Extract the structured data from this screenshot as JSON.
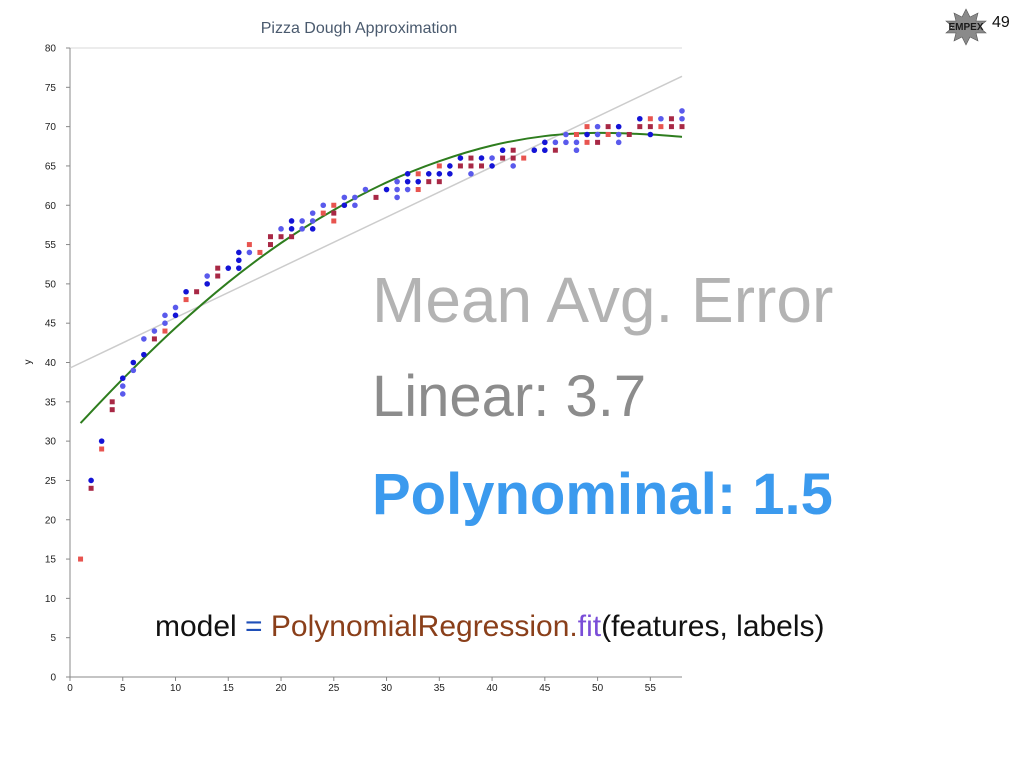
{
  "slide": {
    "mae_heading": "Mean Avg. Error",
    "linear_text": "Linear: 3.7",
    "poly_text": "Polynominal: 1.5",
    "code": {
      "var": "model",
      "eq": " = ",
      "class_name": "PolynomialRegression",
      "dot": ".",
      "method": "fit",
      "args": "(features, labels)"
    },
    "logo_text": "EMPEX",
    "page_number": "49"
  },
  "colors": {
    "red_series": "#e8544f",
    "dark_red_series": "#a82845",
    "blue_series": "#1414d6",
    "light_blue_series": "#5a5aec",
    "poly_curve": "#2e7d1e",
    "linear_line": "#cccccc",
    "poly_text": "#3b9aee"
  },
  "chart_data": {
    "type": "scatter",
    "title": "Pizza Dough Approximation",
    "xlabel": "",
    "ylabel": "y",
    "xlim": [
      0,
      58
    ],
    "ylim": [
      0,
      80
    ],
    "x_ticks": [
      0,
      5,
      10,
      15,
      20,
      25,
      30,
      35,
      40,
      45,
      50,
      55
    ],
    "y_ticks": [
      0,
      5,
      10,
      15,
      20,
      25,
      30,
      35,
      40,
      45,
      50,
      55,
      60,
      65,
      70,
      75,
      80
    ],
    "grid": "horizontal line at top only",
    "scatter_points": [
      {
        "x": 1,
        "y": 15,
        "shape": "square",
        "color": "#e8544f"
      },
      {
        "x": 2,
        "y": 24,
        "shape": "square",
        "color": "#a82845"
      },
      {
        "x": 2,
        "y": 25,
        "shape": "circle",
        "color": "#1414d6"
      },
      {
        "x": 3,
        "y": 29,
        "shape": "square",
        "color": "#e8544f"
      },
      {
        "x": 3,
        "y": 30,
        "shape": "circle",
        "color": "#1414d6"
      },
      {
        "x": 4,
        "y": 34,
        "shape": "square",
        "color": "#a82845"
      },
      {
        "x": 4,
        "y": 35,
        "shape": "square",
        "color": "#a82845"
      },
      {
        "x": 5,
        "y": 36,
        "shape": "circle",
        "color": "#5a5aec"
      },
      {
        "x": 5,
        "y": 37,
        "shape": "circle",
        "color": "#5a5aec"
      },
      {
        "x": 5,
        "y": 38,
        "shape": "circle",
        "color": "#1414d6"
      },
      {
        "x": 6,
        "y": 39,
        "shape": "circle",
        "color": "#5a5aec"
      },
      {
        "x": 6,
        "y": 40,
        "shape": "circle",
        "color": "#1414d6"
      },
      {
        "x": 7,
        "y": 41,
        "shape": "circle",
        "color": "#1414d6"
      },
      {
        "x": 7,
        "y": 43,
        "shape": "circle",
        "color": "#5a5aec"
      },
      {
        "x": 8,
        "y": 43,
        "shape": "square",
        "color": "#a82845"
      },
      {
        "x": 8,
        "y": 44,
        "shape": "circle",
        "color": "#5a5aec"
      },
      {
        "x": 9,
        "y": 44,
        "shape": "square",
        "color": "#e8544f"
      },
      {
        "x": 9,
        "y": 45,
        "shape": "circle",
        "color": "#5a5aec"
      },
      {
        "x": 9,
        "y": 46,
        "shape": "circle",
        "color": "#5a5aec"
      },
      {
        "x": 10,
        "y": 46,
        "shape": "circle",
        "color": "#1414d6"
      },
      {
        "x": 10,
        "y": 47,
        "shape": "circle",
        "color": "#5a5aec"
      },
      {
        "x": 11,
        "y": 48,
        "shape": "square",
        "color": "#e8544f"
      },
      {
        "x": 11,
        "y": 49,
        "shape": "circle",
        "color": "#1414d6"
      },
      {
        "x": 12,
        "y": 49,
        "shape": "square",
        "color": "#a82845"
      },
      {
        "x": 13,
        "y": 50,
        "shape": "circle",
        "color": "#1414d6"
      },
      {
        "x": 13,
        "y": 51,
        "shape": "circle",
        "color": "#5a5aec"
      },
      {
        "x": 14,
        "y": 51,
        "shape": "square",
        "color": "#a82845"
      },
      {
        "x": 14,
        "y": 52,
        "shape": "square",
        "color": "#a82845"
      },
      {
        "x": 15,
        "y": 52,
        "shape": "circle",
        "color": "#1414d6"
      },
      {
        "x": 16,
        "y": 52,
        "shape": "circle",
        "color": "#1414d6"
      },
      {
        "x": 16,
        "y": 53,
        "shape": "circle",
        "color": "#1414d6"
      },
      {
        "x": 16,
        "y": 54,
        "shape": "circle",
        "color": "#1414d6"
      },
      {
        "x": 17,
        "y": 54,
        "shape": "circle",
        "color": "#5a5aec"
      },
      {
        "x": 17,
        "y": 55,
        "shape": "square",
        "color": "#e8544f"
      },
      {
        "x": 18,
        "y": 54,
        "shape": "square",
        "color": "#e8544f"
      },
      {
        "x": 19,
        "y": 55,
        "shape": "square",
        "color": "#a82845"
      },
      {
        "x": 19,
        "y": 56,
        "shape": "square",
        "color": "#a82845"
      },
      {
        "x": 20,
        "y": 56,
        "shape": "square",
        "color": "#a82845"
      },
      {
        "x": 20,
        "y": 57,
        "shape": "circle",
        "color": "#5a5aec"
      },
      {
        "x": 21,
        "y": 56,
        "shape": "square",
        "color": "#a82845"
      },
      {
        "x": 21,
        "y": 57,
        "shape": "circle",
        "color": "#1414d6"
      },
      {
        "x": 21,
        "y": 58,
        "shape": "circle",
        "color": "#1414d6"
      },
      {
        "x": 22,
        "y": 57,
        "shape": "circle",
        "color": "#5a5aec"
      },
      {
        "x": 22,
        "y": 58,
        "shape": "circle",
        "color": "#5a5aec"
      },
      {
        "x": 23,
        "y": 57,
        "shape": "circle",
        "color": "#1414d6"
      },
      {
        "x": 23,
        "y": 58,
        "shape": "circle",
        "color": "#5a5aec"
      },
      {
        "x": 23,
        "y": 59,
        "shape": "circle",
        "color": "#5a5aec"
      },
      {
        "x": 24,
        "y": 59,
        "shape": "square",
        "color": "#e8544f"
      },
      {
        "x": 24,
        "y": 60,
        "shape": "circle",
        "color": "#5a5aec"
      },
      {
        "x": 25,
        "y": 58,
        "shape": "square",
        "color": "#e8544f"
      },
      {
        "x": 25,
        "y": 59,
        "shape": "square",
        "color": "#a82845"
      },
      {
        "x": 25,
        "y": 60,
        "shape": "square",
        "color": "#e8544f"
      },
      {
        "x": 26,
        "y": 60,
        "shape": "circle",
        "color": "#1414d6"
      },
      {
        "x": 26,
        "y": 61,
        "shape": "circle",
        "color": "#5a5aec"
      },
      {
        "x": 27,
        "y": 60,
        "shape": "circle",
        "color": "#5a5aec"
      },
      {
        "x": 27,
        "y": 61,
        "shape": "circle",
        "color": "#5a5aec"
      },
      {
        "x": 28,
        "y": 62,
        "shape": "circle",
        "color": "#5a5aec"
      },
      {
        "x": 29,
        "y": 61,
        "shape": "square",
        "color": "#a82845"
      },
      {
        "x": 30,
        "y": 62,
        "shape": "circle",
        "color": "#1414d6"
      },
      {
        "x": 31,
        "y": 61,
        "shape": "circle",
        "color": "#5a5aec"
      },
      {
        "x": 31,
        "y": 62,
        "shape": "circle",
        "color": "#5a5aec"
      },
      {
        "x": 31,
        "y": 63,
        "shape": "circle",
        "color": "#5a5aec"
      },
      {
        "x": 32,
        "y": 62,
        "shape": "circle",
        "color": "#5a5aec"
      },
      {
        "x": 32,
        "y": 63,
        "shape": "circle",
        "color": "#1414d6"
      },
      {
        "x": 32,
        "y": 64,
        "shape": "circle",
        "color": "#1414d6"
      },
      {
        "x": 33,
        "y": 62,
        "shape": "square",
        "color": "#e8544f"
      },
      {
        "x": 33,
        "y": 63,
        "shape": "circle",
        "color": "#1414d6"
      },
      {
        "x": 33,
        "y": 64,
        "shape": "square",
        "color": "#e8544f"
      },
      {
        "x": 34,
        "y": 63,
        "shape": "square",
        "color": "#a82845"
      },
      {
        "x": 34,
        "y": 64,
        "shape": "circle",
        "color": "#1414d6"
      },
      {
        "x": 35,
        "y": 63,
        "shape": "square",
        "color": "#a82845"
      },
      {
        "x": 35,
        "y": 64,
        "shape": "circle",
        "color": "#1414d6"
      },
      {
        "x": 35,
        "y": 65,
        "shape": "square",
        "color": "#e8544f"
      },
      {
        "x": 36,
        "y": 64,
        "shape": "circle",
        "color": "#1414d6"
      },
      {
        "x": 36,
        "y": 65,
        "shape": "circle",
        "color": "#1414d6"
      },
      {
        "x": 37,
        "y": 65,
        "shape": "square",
        "color": "#a82845"
      },
      {
        "x": 37,
        "y": 66,
        "shape": "circle",
        "color": "#1414d6"
      },
      {
        "x": 38,
        "y": 64,
        "shape": "circle",
        "color": "#5a5aec"
      },
      {
        "x": 38,
        "y": 65,
        "shape": "square",
        "color": "#a82845"
      },
      {
        "x": 38,
        "y": 66,
        "shape": "square",
        "color": "#a82845"
      },
      {
        "x": 39,
        "y": 65,
        "shape": "square",
        "color": "#a82845"
      },
      {
        "x": 39,
        "y": 66,
        "shape": "circle",
        "color": "#1414d6"
      },
      {
        "x": 40,
        "y": 65,
        "shape": "circle",
        "color": "#1414d6"
      },
      {
        "x": 40,
        "y": 66,
        "shape": "circle",
        "color": "#5a5aec"
      },
      {
        "x": 41,
        "y": 66,
        "shape": "square",
        "color": "#a82845"
      },
      {
        "x": 41,
        "y": 67,
        "shape": "circle",
        "color": "#1414d6"
      },
      {
        "x": 42,
        "y": 65,
        "shape": "circle",
        "color": "#5a5aec"
      },
      {
        "x": 42,
        "y": 66,
        "shape": "square",
        "color": "#a82845"
      },
      {
        "x": 42,
        "y": 67,
        "shape": "square",
        "color": "#a82845"
      },
      {
        "x": 43,
        "y": 66,
        "shape": "square",
        "color": "#e8544f"
      },
      {
        "x": 44,
        "y": 67,
        "shape": "circle",
        "color": "#1414d6"
      },
      {
        "x": 45,
        "y": 67,
        "shape": "circle",
        "color": "#1414d6"
      },
      {
        "x": 45,
        "y": 68,
        "shape": "circle",
        "color": "#1414d6"
      },
      {
        "x": 46,
        "y": 67,
        "shape": "square",
        "color": "#a82845"
      },
      {
        "x": 46,
        "y": 68,
        "shape": "circle",
        "color": "#5a5aec"
      },
      {
        "x": 47,
        "y": 68,
        "shape": "circle",
        "color": "#5a5aec"
      },
      {
        "x": 47,
        "y": 69,
        "shape": "circle",
        "color": "#5a5aec"
      },
      {
        "x": 48,
        "y": 67,
        "shape": "circle",
        "color": "#5a5aec"
      },
      {
        "x": 48,
        "y": 68,
        "shape": "circle",
        "color": "#5a5aec"
      },
      {
        "x": 48,
        "y": 69,
        "shape": "square",
        "color": "#e8544f"
      },
      {
        "x": 49,
        "y": 68,
        "shape": "square",
        "color": "#e8544f"
      },
      {
        "x": 49,
        "y": 69,
        "shape": "circle",
        "color": "#1414d6"
      },
      {
        "x": 49,
        "y": 70,
        "shape": "square",
        "color": "#e8544f"
      },
      {
        "x": 50,
        "y": 68,
        "shape": "square",
        "color": "#a82845"
      },
      {
        "x": 50,
        "y": 69,
        "shape": "circle",
        "color": "#5a5aec"
      },
      {
        "x": 50,
        "y": 70,
        "shape": "circle",
        "color": "#5a5aec"
      },
      {
        "x": 51,
        "y": 69,
        "shape": "square",
        "color": "#e8544f"
      },
      {
        "x": 51,
        "y": 70,
        "shape": "square",
        "color": "#a82845"
      },
      {
        "x": 52,
        "y": 68,
        "shape": "circle",
        "color": "#5a5aec"
      },
      {
        "x": 52,
        "y": 69,
        "shape": "circle",
        "color": "#5a5aec"
      },
      {
        "x": 52,
        "y": 70,
        "shape": "circle",
        "color": "#1414d6"
      },
      {
        "x": 53,
        "y": 69,
        "shape": "square",
        "color": "#a82845"
      },
      {
        "x": 54,
        "y": 70,
        "shape": "square",
        "color": "#a82845"
      },
      {
        "x": 54,
        "y": 71,
        "shape": "circle",
        "color": "#1414d6"
      },
      {
        "x": 55,
        "y": 69,
        "shape": "circle",
        "color": "#1414d6"
      },
      {
        "x": 55,
        "y": 70,
        "shape": "square",
        "color": "#a82845"
      },
      {
        "x": 55,
        "y": 71,
        "shape": "square",
        "color": "#e8544f"
      },
      {
        "x": 56,
        "y": 70,
        "shape": "square",
        "color": "#e8544f"
      },
      {
        "x": 56,
        "y": 71,
        "shape": "circle",
        "color": "#5a5aec"
      },
      {
        "x": 57,
        "y": 70,
        "shape": "square",
        "color": "#a82845"
      },
      {
        "x": 57,
        "y": 71,
        "shape": "square",
        "color": "#a82845"
      },
      {
        "x": 58,
        "y": 70,
        "shape": "square",
        "color": "#a82845"
      },
      {
        "x": 58,
        "y": 71,
        "shape": "circle",
        "color": "#5a5aec"
      },
      {
        "x": 58,
        "y": 72,
        "shape": "circle",
        "color": "#5a5aec"
      }
    ],
    "series": [
      {
        "type": "line",
        "x": [
          0,
          58
        ],
        "y": [
          39.3,
          76.4
        ],
        "color": "#cccccc"
      },
      {
        "type": "curve",
        "x": [
          1,
          5,
          10,
          15,
          20,
          25,
          30,
          35,
          40,
          45,
          50,
          55,
          58
        ],
        "y": [
          32.3,
          37.9,
          44.4,
          50.2,
          55.2,
          59.4,
          62.9,
          65.6,
          67.6,
          68.8,
          69.2,
          69.0,
          68.7
        ],
        "color": "#2e7d1e"
      }
    ]
  }
}
